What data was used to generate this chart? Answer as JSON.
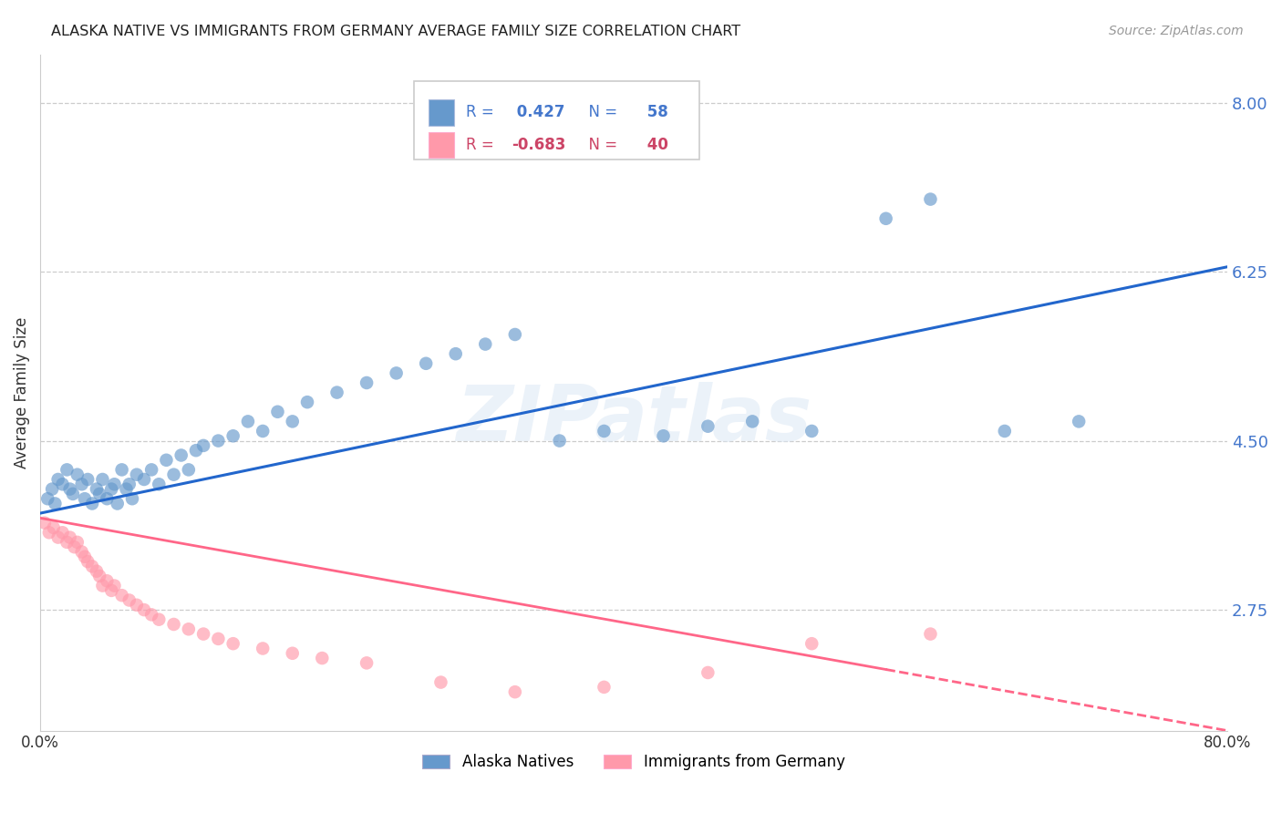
{
  "title": "ALASKA NATIVE VS IMMIGRANTS FROM GERMANY AVERAGE FAMILY SIZE CORRELATION CHART",
  "source": "Source: ZipAtlas.com",
  "ylabel": "Average Family Size",
  "right_yticks": [
    8.0,
    6.25,
    4.5,
    2.75
  ],
  "right_yticklabels": [
    "8.00",
    "6.25",
    "4.50",
    "2.75"
  ],
  "blue_R": "0.427",
  "blue_N": "58",
  "pink_R": "-0.683",
  "pink_N": "40",
  "legend_label_blue": "Alaska Natives",
  "legend_label_pink": "Immigrants from Germany",
  "blue_color": "#6699cc",
  "pink_color": "#ff99aa",
  "blue_line_color": "#2266cc",
  "pink_line_color": "#ff6688",
  "watermark": "ZIPatlas",
  "blue_scatter_x": [
    0.5,
    0.8,
    1.0,
    1.2,
    1.5,
    1.8,
    2.0,
    2.2,
    2.5,
    2.8,
    3.0,
    3.2,
    3.5,
    3.8,
    4.0,
    4.2,
    4.5,
    4.8,
    5.0,
    5.2,
    5.5,
    5.8,
    6.0,
    6.2,
    6.5,
    7.0,
    7.5,
    8.0,
    8.5,
    9.0,
    9.5,
    10.0,
    10.5,
    11.0,
    12.0,
    13.0,
    14.0,
    15.0,
    16.0,
    17.0,
    18.0,
    20.0,
    22.0,
    24.0,
    26.0,
    28.0,
    30.0,
    32.0,
    35.0,
    38.0,
    42.0,
    45.0,
    48.0,
    52.0,
    57.0,
    60.0,
    65.0,
    70.0
  ],
  "blue_scatter_y": [
    3.9,
    4.0,
    3.85,
    4.1,
    4.05,
    4.2,
    4.0,
    3.95,
    4.15,
    4.05,
    3.9,
    4.1,
    3.85,
    4.0,
    3.95,
    4.1,
    3.9,
    4.0,
    4.05,
    3.85,
    4.2,
    4.0,
    4.05,
    3.9,
    4.15,
    4.1,
    4.2,
    4.05,
    4.3,
    4.15,
    4.35,
    4.2,
    4.4,
    4.45,
    4.5,
    4.55,
    4.7,
    4.6,
    4.8,
    4.7,
    4.9,
    5.0,
    5.1,
    5.2,
    5.3,
    5.4,
    5.5,
    5.6,
    4.5,
    4.6,
    4.55,
    4.65,
    4.7,
    4.6,
    6.8,
    7.0,
    4.6,
    4.7
  ],
  "pink_scatter_x": [
    0.3,
    0.6,
    0.9,
    1.2,
    1.5,
    1.8,
    2.0,
    2.3,
    2.5,
    2.8,
    3.0,
    3.2,
    3.5,
    3.8,
    4.0,
    4.2,
    4.5,
    4.8,
    5.0,
    5.5,
    6.0,
    6.5,
    7.0,
    7.5,
    8.0,
    9.0,
    10.0,
    11.0,
    12.0,
    13.0,
    15.0,
    17.0,
    19.0,
    22.0,
    27.0,
    32.0,
    38.0,
    45.0,
    52.0,
    60.0
  ],
  "pink_scatter_y": [
    3.65,
    3.55,
    3.6,
    3.5,
    3.55,
    3.45,
    3.5,
    3.4,
    3.45,
    3.35,
    3.3,
    3.25,
    3.2,
    3.15,
    3.1,
    3.0,
    3.05,
    2.95,
    3.0,
    2.9,
    2.85,
    2.8,
    2.75,
    2.7,
    2.65,
    2.6,
    2.55,
    2.5,
    2.45,
    2.4,
    2.35,
    2.3,
    2.25,
    2.2,
    2.0,
    1.9,
    1.95,
    2.1,
    2.4,
    2.5
  ],
  "xlim": [
    0,
    80
  ],
  "ylim_bottom": 1.5,
  "ylim_top": 8.5,
  "blue_line_x0": 0,
  "blue_line_x1": 80,
  "blue_line_y0": 3.75,
  "blue_line_y1": 6.3,
  "pink_line_x0": 0,
  "pink_line_x1": 80,
  "pink_line_y0": 3.7,
  "pink_line_y1": 1.5,
  "pink_solid_end_x": 57
}
